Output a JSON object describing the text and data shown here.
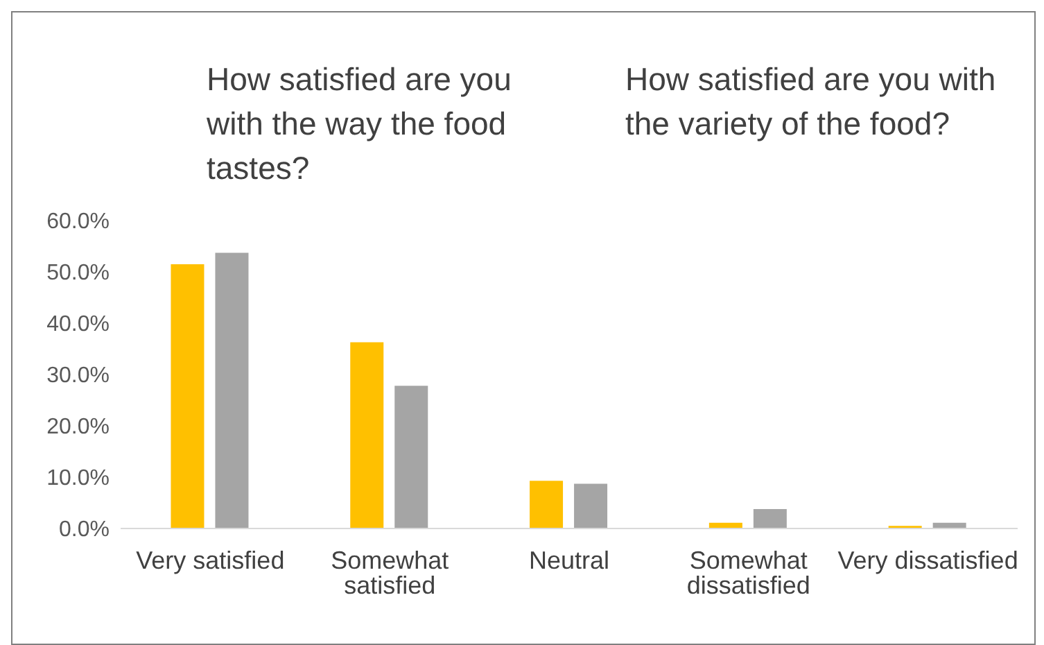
{
  "chart_data": {
    "type": "bar",
    "annotations": [
      "How satisfied are you with the way the food tastes?",
      "How satisfied are you with the variety of the food?"
    ],
    "categories": [
      "Very satisfied",
      "Somewhat satisfied",
      "Neutral",
      "Somewhat dissatisfied",
      "Very dissatisfied"
    ],
    "series": [
      {
        "color": "#ffc000",
        "values": [
          51.5,
          36.3,
          9.3,
          1.1,
          0.5
        ]
      },
      {
        "color": "#a5a5a5",
        "values": [
          53.7,
          27.8,
          8.7,
          3.8,
          1.1
        ]
      }
    ],
    "ylim": [
      0,
      60
    ],
    "yticks": [
      {
        "value": 0,
        "label": "0.0%"
      },
      {
        "value": 10,
        "label": "10.0%"
      },
      {
        "value": 20,
        "label": "20.0%"
      },
      {
        "value": 30,
        "label": "30.0%"
      },
      {
        "value": 40,
        "label": "40.0%"
      },
      {
        "value": 50,
        "label": "50.0%"
      },
      {
        "value": 60,
        "label": "60.0%"
      }
    ],
    "grid": false,
    "legend": false
  }
}
